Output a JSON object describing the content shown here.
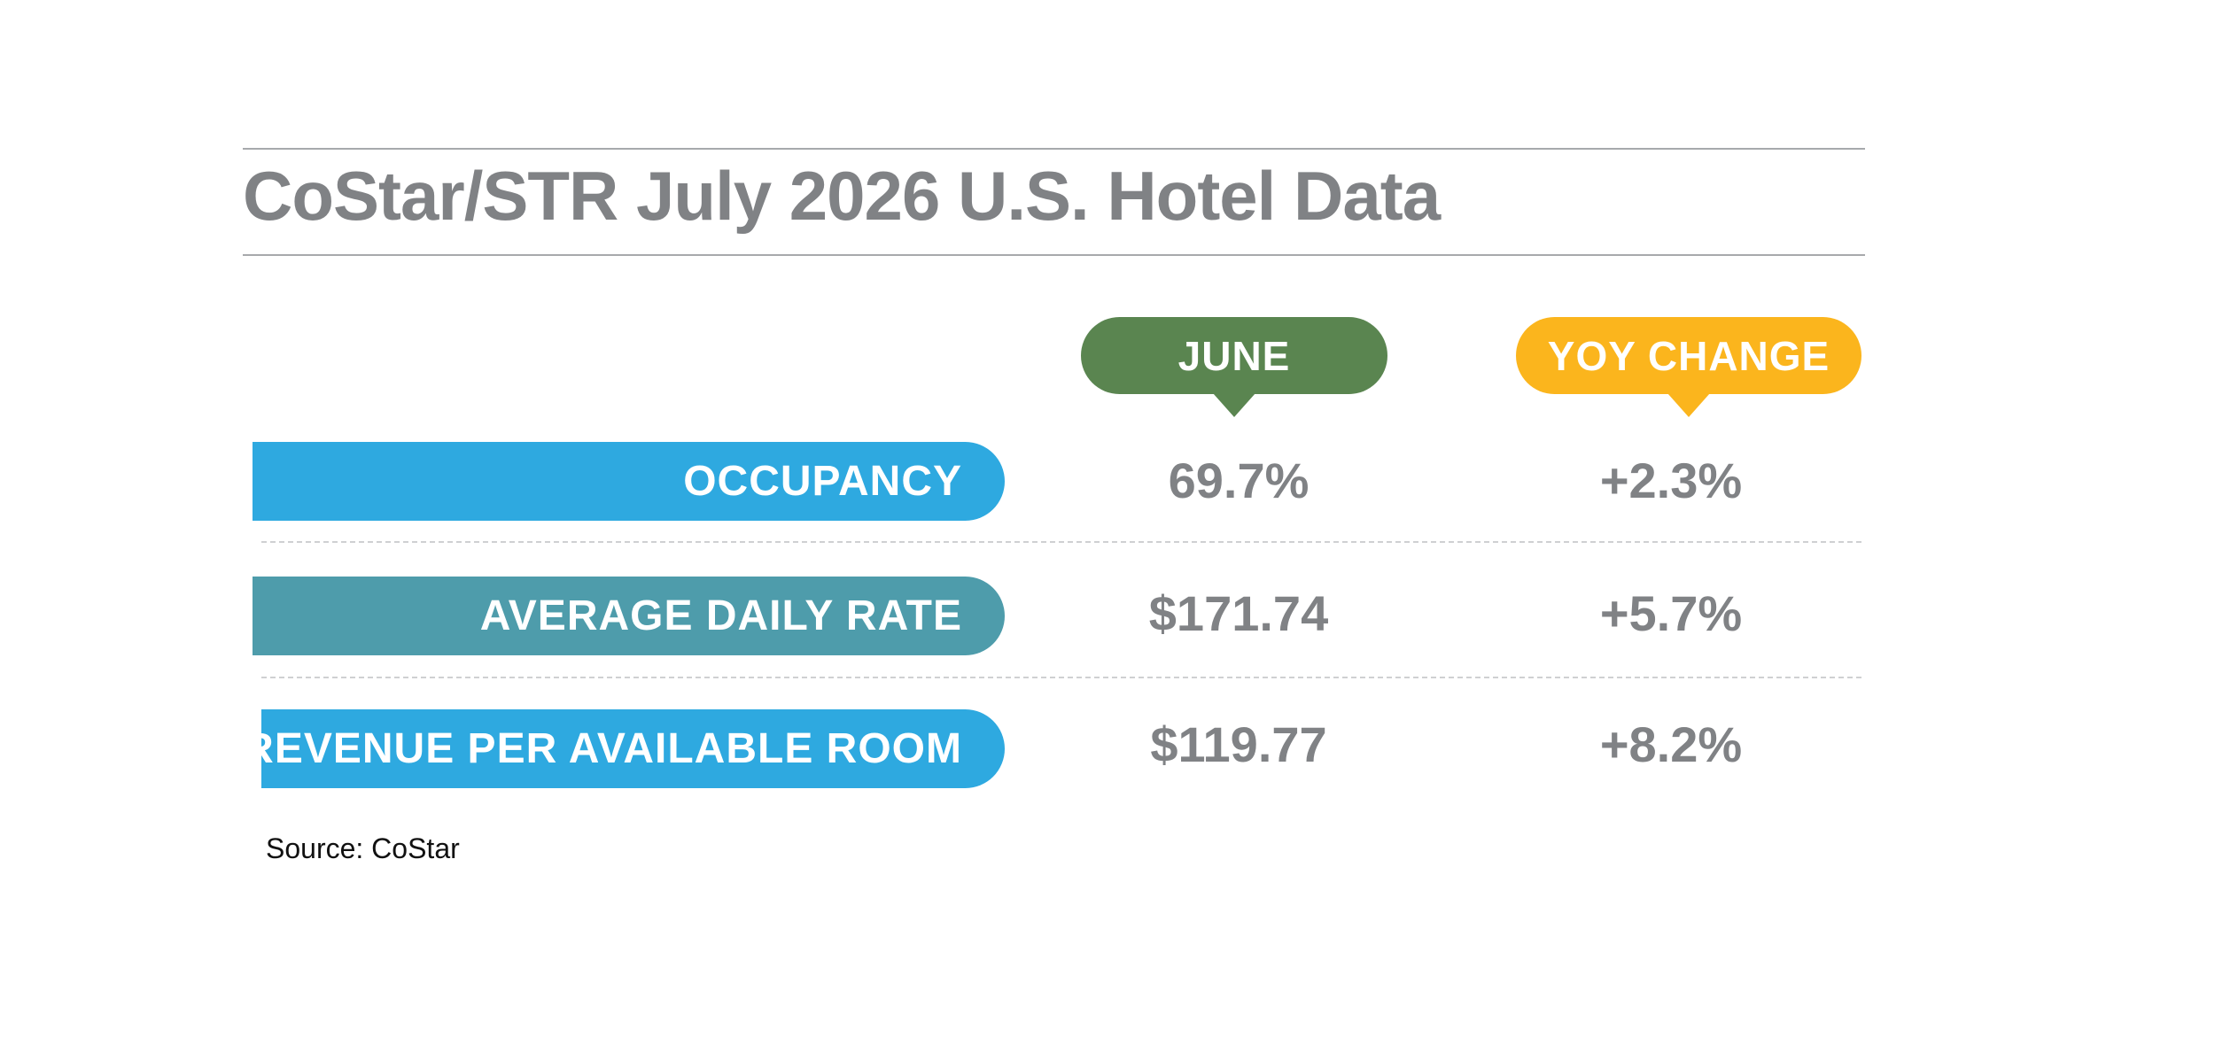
{
  "header": {
    "title": "CoStar/STR July 2026 U.S. Hotel Data"
  },
  "table": {
    "columns": [
      "JUNE",
      "YOY CHANGE"
    ],
    "rows": [
      [
        "OCCUPANCY",
        "69.7%",
        "+2.3%"
      ],
      [
        "AVERAGE DAILY RATE",
        "$171.74",
        "+5.7%"
      ],
      [
        "REVENUE PER AVAILABLE ROOM",
        "$119.77",
        "+8.2%"
      ]
    ]
  },
  "footer": {
    "source": "Source: CoStar"
  }
}
